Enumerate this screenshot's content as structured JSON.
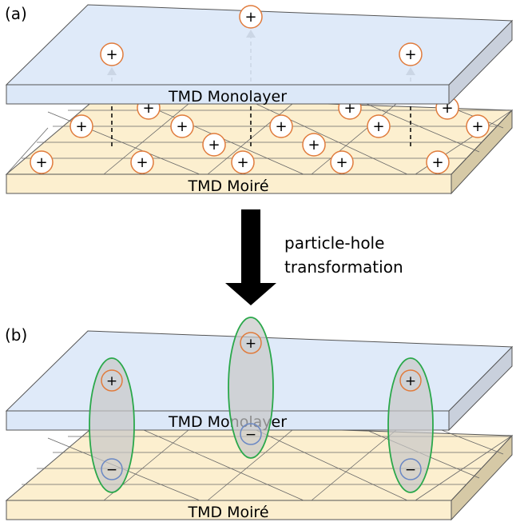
{
  "panel_a": {
    "label": "(a)",
    "monolayer_label": "TMD Monolayer",
    "moire_label": "TMD Moiré",
    "hole_symbol": "+"
  },
  "transformation": {
    "line1": "particle-hole",
    "line2": "transformation"
  },
  "panel_b": {
    "label": "(b)",
    "monolayer_label": "TMD Monolayer",
    "moire_label": "TMD Moiré",
    "hole_symbol": "+",
    "electron_symbol": "−"
  },
  "colors": {
    "monolayer_top": "#dce8f8",
    "monolayer_side": "#c9d0dc",
    "moire_top": "#fcefcf",
    "moire_side": "#d6c9a6",
    "hole_ring": "#e07b3c",
    "electron_ring": "#6b88c4",
    "exciton_ring": "#2aa84a",
    "exciton_fill": "#c8c8c8",
    "arrow": "#000000"
  }
}
